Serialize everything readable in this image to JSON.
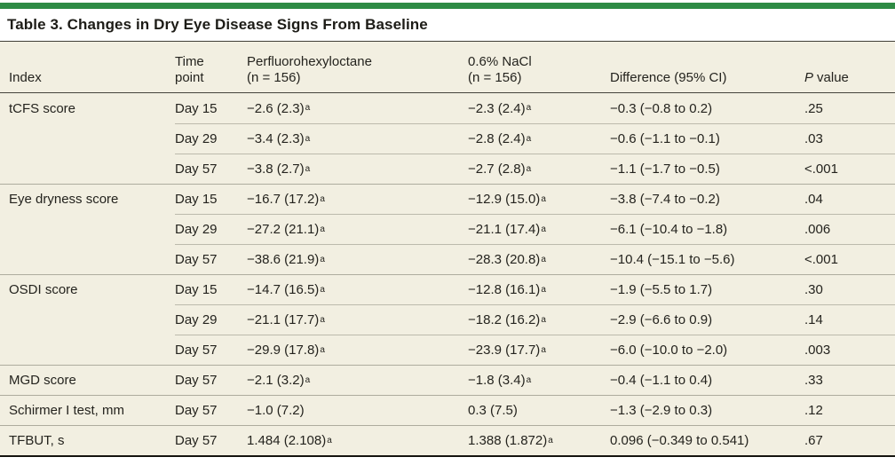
{
  "page": {
    "accent_green": "#2e8b44",
    "table_background": "#f2efe1"
  },
  "table": {
    "title": "Table 3. Changes in Dry Eye Disease Signs From Baseline",
    "columns": {
      "index": "Index",
      "time_line1": "Time",
      "time_line2": "point",
      "pfho_line1": "Perfluorohexyloctane",
      "pfho_line2": "(n = 156)",
      "nacl_line1": "0.6% NaCl",
      "nacl_line2": "(n = 156)",
      "difference": "Difference (95% CI)",
      "p_italic": "P",
      "p_rest": "value"
    },
    "rows": [
      {
        "index": "tCFS score",
        "time": "Day 15",
        "pfho": "−2.6 (2.3)",
        "pfho_sup": "a",
        "nacl": "−2.3 (2.4)",
        "nacl_sup": "a",
        "diff": "−0.3 (−0.8 to 0.2)",
        "p": ".25"
      },
      {
        "index": "",
        "time": "Day 29",
        "pfho": "−3.4 (2.3)",
        "pfho_sup": "a",
        "nacl": "−2.8 (2.4)",
        "nacl_sup": "a",
        "diff": "−0.6 (−1.1 to −0.1)",
        "p": ".03"
      },
      {
        "index": "",
        "time": "Day 57",
        "pfho": "−3.8 (2.7)",
        "pfho_sup": "a",
        "nacl": "−2.7 (2.8)",
        "nacl_sup": "a",
        "diff": "−1.1 (−1.7 to −0.5)",
        "p": "<.001"
      },
      {
        "index": "Eye dryness score",
        "time": "Day 15",
        "pfho": "−16.7 (17.2)",
        "pfho_sup": "a",
        "nacl": "−12.9 (15.0)",
        "nacl_sup": "a",
        "diff": "−3.8 (−7.4 to −0.2)",
        "p": ".04"
      },
      {
        "index": "",
        "time": "Day 29",
        "pfho": "−27.2 (21.1)",
        "pfho_sup": "a",
        "nacl": "−21.1 (17.4)",
        "nacl_sup": "a",
        "diff": "−6.1 (−10.4 to −1.8)",
        "p": ".006"
      },
      {
        "index": "",
        "time": "Day 57",
        "pfho": "−38.6 (21.9)",
        "pfho_sup": "a",
        "nacl": "−28.3 (20.8)",
        "nacl_sup": "a",
        "diff": "−10.4 (−15.1 to −5.6)",
        "p": "<.001"
      },
      {
        "index": "OSDI score",
        "time": "Day 15",
        "pfho": "−14.7 (16.5)",
        "pfho_sup": "a",
        "nacl": "−12.8 (16.1)",
        "nacl_sup": "a",
        "diff": "−1.9 (−5.5 to 1.7)",
        "p": ".30"
      },
      {
        "index": "",
        "time": "Day 29",
        "pfho": "−21.1 (17.7)",
        "pfho_sup": "a",
        "nacl": "−18.2 (16.2)",
        "nacl_sup": "a",
        "diff": "−2.9 (−6.6 to 0.9)",
        "p": ".14"
      },
      {
        "index": "",
        "time": "Day 57",
        "pfho": "−29.9 (17.8)",
        "pfho_sup": "a",
        "nacl": "−23.9 (17.7)",
        "nacl_sup": "a",
        "diff": "−6.0 (−10.0 to −2.0)",
        "p": ".003"
      },
      {
        "index": "MGD score",
        "time": "Day 57",
        "pfho": "−2.1 (3.2)",
        "pfho_sup": "a",
        "nacl": "−1.8 (3.4)",
        "nacl_sup": "a",
        "diff": "−0.4 (−1.1 to 0.4)",
        "p": ".33"
      },
      {
        "index": "Schirmer I test, mm",
        "time": "Day 57",
        "pfho": "−1.0 (7.2)",
        "pfho_sup": "",
        "nacl": "0.3 (7.5)",
        "nacl_sup": "",
        "diff": "−1.3 (−2.9 to 0.3)",
        "p": ".12"
      },
      {
        "index": "TFBUT, s",
        "time": "Day 57",
        "pfho": "1.484 (2.108)",
        "pfho_sup": "a",
        "nacl": "1.388 (1.872)",
        "nacl_sup": "a",
        "diff": "0.096 (−0.349 to 0.541)",
        "p": ".67"
      }
    ]
  }
}
